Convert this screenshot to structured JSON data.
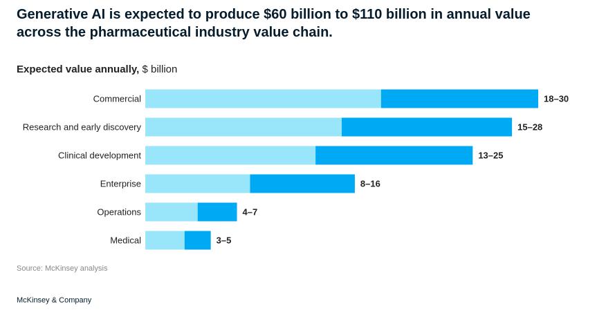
{
  "chart_data": {
    "type": "range-bar",
    "title": "Generative AI is expected to produce $60 billion to $110 billion in annual value across the pharmaceutical industry value chain.",
    "subtitle": "Expected value annually,",
    "unit": "$ billion",
    "categories": [
      "Commercial",
      "Research and early discovery",
      "Clinical development",
      "Enterprise",
      "Operations",
      "Medical"
    ],
    "series": [
      {
        "color": "#99e6fb",
        "values": [
          18,
          15,
          13,
          8,
          4,
          3
        ]
      },
      {
        "color": "#00a9f4",
        "values": [
          30,
          28,
          25,
          16,
          7,
          5
        ]
      }
    ],
    "value_labels": [
      "18–30",
      "15–28",
      "13–25",
      "8–16",
      "4–7",
      "3–5"
    ],
    "xlim": [
      0,
      30
    ],
    "source": "Source: McKinsey analysis",
    "footer": "McKinsey & Company"
  }
}
